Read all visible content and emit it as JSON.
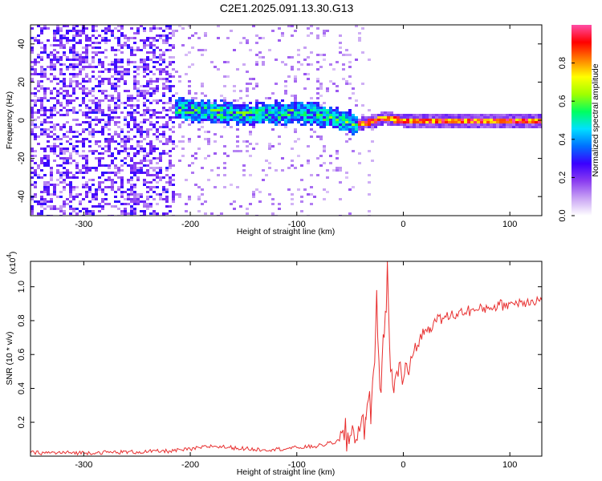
{
  "title": "C2E1.2025.091.13.30.G13",
  "chart_data": [
    {
      "type": "heatmap",
      "xlabel": "Height of straight line (km)",
      "ylabel": "Frequency (Hz)",
      "xlim": [
        -350,
        130
      ],
      "ylim": [
        -50,
        50
      ],
      "xticks": [
        "-300",
        "-200",
        "-100",
        "0",
        "100"
      ],
      "yticks": [
        "-40",
        "-20",
        "0",
        "20",
        "40"
      ],
      "xtick_values": [
        -300,
        -200,
        -100,
        0,
        100
      ],
      "ytick_values": [
        -40,
        -20,
        0,
        20,
        40
      ],
      "colorbar": {
        "label": "Normalized spectral amplitude",
        "range": [
          0,
          1
        ],
        "ticks": [
          "0.0",
          "0.2",
          "0.4",
          "0.6",
          "0.8"
        ],
        "tick_values": [
          0.0,
          0.2,
          0.4,
          0.6,
          0.8
        ],
        "colors": [
          "#ffffff",
          "#c9a4f4",
          "#8a3cf0",
          "#3a00ff",
          "#0070ff",
          "#00e0ff",
          "#00ff60",
          "#a0ff00",
          "#ffff00",
          "#ff8000",
          "#ff0000",
          "#ff4da6"
        ]
      },
      "regions": [
        {
          "description_x": [
            -350,
            -215
          ],
          "frequency": "broadband noise",
          "amplitude": 0.15
        },
        {
          "description_x": [
            -215,
            -45
          ],
          "frequency_center": [
            7,
            2
          ],
          "frequency_halfwidth": 6,
          "amplitude": 0.45
        },
        {
          "description_x": [
            -45,
            130
          ],
          "frequency_center": 0.5,
          "frequency_halfwidth": 1.5,
          "amplitude": 0.9
        }
      ],
      "center_frequency_track": {
        "x": [
          -215,
          -200,
          -180,
          -160,
          -140,
          -120,
          -100,
          -80,
          -60,
          -50,
          -45,
          -40,
          -30,
          -20,
          -10,
          0,
          50,
          130
        ],
        "y": [
          7,
          6,
          5,
          4,
          4,
          4,
          5,
          3,
          1,
          -1,
          -2,
          -1,
          0,
          2,
          1,
          0.5,
          0.5,
          0.5
        ]
      }
    },
    {
      "type": "line",
      "xlabel": "Height of straight line (km)",
      "ylabel": "SNR (10 * v/v)",
      "scale_label": "(x10",
      "scale_exponent": "4",
      "xlim": [
        -350,
        130
      ],
      "ylim": [
        0,
        1.15
      ],
      "xticks": [
        "-300",
        "-200",
        "-100",
        "0",
        "100"
      ],
      "yticks": [
        "0.2",
        "0.4",
        "0.6",
        "0.8",
        "1.0"
      ],
      "xtick_values": [
        -300,
        -200,
        -100,
        0,
        100
      ],
      "ytick_values": [
        0.2,
        0.4,
        0.6,
        0.8,
        1.0
      ],
      "color": "#e83030",
      "series": [
        {
          "x": [
            -350,
            -300,
            -250,
            -220,
            -200,
            -180,
            -160,
            -140,
            -120,
            -100,
            -80,
            -60,
            -50,
            -40,
            -35,
            -30,
            -28,
            -26,
            -25,
            -24,
            -22,
            -20,
            -18,
            -16,
            -15,
            -14,
            -12,
            -10,
            -8,
            -6,
            -4,
            -2,
            0,
            2,
            4,
            6,
            8,
            10,
            15,
            20,
            25,
            30,
            40,
            50,
            60,
            70,
            80,
            90,
            100,
            110,
            120,
            130
          ],
          "y": [
            0.02,
            0.02,
            0.025,
            0.03,
            0.04,
            0.06,
            0.05,
            0.04,
            0.04,
            0.05,
            0.06,
            0.09,
            0.12,
            0.18,
            0.22,
            0.3,
            0.5,
            0.75,
            0.98,
            0.7,
            0.4,
            0.55,
            0.7,
            0.85,
            1.15,
            0.9,
            0.5,
            0.42,
            0.45,
            0.5,
            0.55,
            0.5,
            0.45,
            0.55,
            0.5,
            0.52,
            0.58,
            0.62,
            0.68,
            0.74,
            0.76,
            0.8,
            0.82,
            0.84,
            0.86,
            0.86,
            0.88,
            0.89,
            0.9,
            0.91,
            0.92,
            0.92
          ]
        }
      ]
    }
  ]
}
